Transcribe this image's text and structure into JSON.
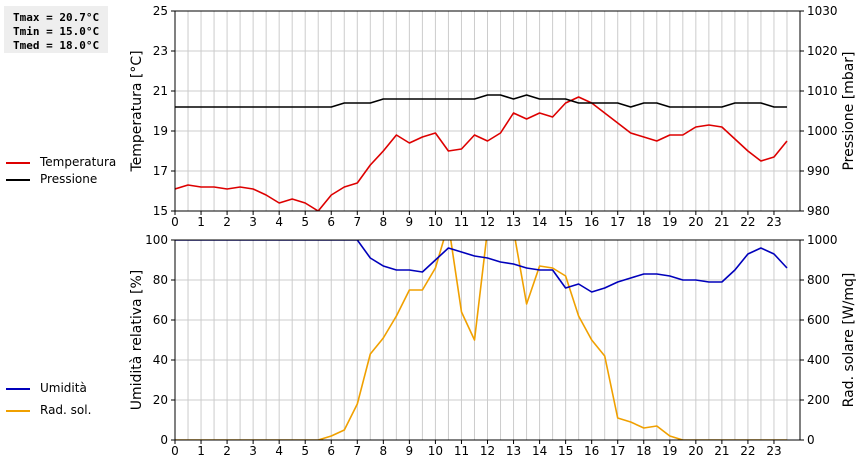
{
  "stats": {
    "tmax": "Tmax = 20.7°C",
    "tmin": "Tmin = 15.0°C",
    "tmed": "Tmed = 18.0°C"
  },
  "colors": {
    "temperature": "#dd0000",
    "pressure": "#000000",
    "humidity": "#0000bb",
    "solar": "#f0a000",
    "grid": "#cccccc"
  },
  "chart_data": [
    {
      "type": "line",
      "xlabel": "",
      "ylabel_left": "Temperatura [°C]",
      "ylabel_right": "Pressione [mbar]",
      "xlim": [
        0,
        24
      ],
      "ylim_left": [
        15,
        25
      ],
      "ylim_right": [
        980,
        1030
      ],
      "xticks": [
        "0",
        "1",
        "2",
        "3",
        "4",
        "5",
        "6",
        "7",
        "8",
        "9",
        "10",
        "11",
        "12",
        "13",
        "14",
        "15",
        "16",
        "17",
        "18",
        "19",
        "20",
        "21",
        "22",
        "23"
      ],
      "yticks_left": [
        "15",
        "17",
        "19",
        "21",
        "23",
        "25"
      ],
      "yticks_right": [
        "980",
        "990",
        "1000",
        "1010",
        "1020",
        "1030"
      ],
      "grid": true,
      "legend_position": "left",
      "series": [
        {
          "name": "Temperatura",
          "axis": "left",
          "color": "#dd0000",
          "x": [
            0,
            0.5,
            1,
            1.5,
            2,
            2.5,
            3,
            3.5,
            4,
            4.5,
            5,
            5.5,
            6,
            6.5,
            7,
            7.5,
            8,
            8.5,
            9,
            9.5,
            10,
            10.5,
            11,
            11.5,
            12,
            12.5,
            13,
            13.5,
            14,
            14.5,
            15,
            15.5,
            16,
            16.5,
            17,
            17.5,
            18,
            18.5,
            19,
            19.5,
            20,
            20.5,
            21,
            21.5,
            22,
            22.5,
            23,
            23.5
          ],
          "values": [
            16.1,
            16.3,
            16.2,
            16.2,
            16.1,
            16.2,
            16.1,
            15.8,
            15.4,
            15.6,
            15.4,
            15.0,
            15.8,
            16.2,
            16.4,
            17.3,
            18.0,
            18.8,
            18.4,
            18.7,
            18.9,
            18.0,
            18.1,
            18.8,
            18.5,
            18.9,
            19.9,
            19.6,
            19.9,
            19.7,
            20.4,
            20.7,
            20.4,
            19.9,
            19.4,
            18.9,
            18.7,
            18.5,
            18.8,
            18.8,
            19.2,
            19.3,
            19.2,
            18.6,
            18.0,
            17.5,
            17.7,
            18.5
          ]
        },
        {
          "name": "Pressione",
          "axis": "right",
          "color": "#000000",
          "x": [
            0,
            0.5,
            1,
            1.5,
            2,
            2.5,
            3,
            3.5,
            4,
            4.5,
            5,
            5.5,
            6,
            6.5,
            7,
            7.5,
            8,
            8.5,
            9,
            9.5,
            10,
            10.5,
            11,
            11.5,
            12,
            12.5,
            13,
            13.5,
            14,
            14.5,
            15,
            15.5,
            16,
            16.5,
            17,
            17.5,
            18,
            18.5,
            19,
            19.5,
            20,
            20.5,
            21,
            21.5,
            22,
            22.5,
            23,
            23.5
          ],
          "values": [
            1006,
            1006,
            1006,
            1006,
            1006,
            1006,
            1006,
            1006,
            1006,
            1006,
            1006,
            1006,
            1006,
            1007,
            1007,
            1007,
            1008,
            1008,
            1008,
            1008,
            1008,
            1008,
            1008,
            1008,
            1009,
            1009,
            1008,
            1009,
            1008,
            1008,
            1008,
            1007,
            1007,
            1007,
            1007,
            1006,
            1007,
            1007,
            1006,
            1006,
            1006,
            1006,
            1006,
            1007,
            1007,
            1007,
            1006,
            1006
          ]
        }
      ]
    },
    {
      "type": "line",
      "xlabel": "",
      "ylabel_left": "Umidità relativa [%]",
      "ylabel_right": "Rad. solare [W/mq]",
      "xlim": [
        0,
        24
      ],
      "ylim_left": [
        0,
        100
      ],
      "ylim_right": [
        0,
        1000
      ],
      "xticks": [
        "0",
        "1",
        "2",
        "3",
        "4",
        "5",
        "6",
        "7",
        "8",
        "9",
        "10",
        "11",
        "12",
        "13",
        "14",
        "15",
        "16",
        "17",
        "18",
        "19",
        "20",
        "21",
        "22",
        "23"
      ],
      "yticks_left": [
        "0",
        "20",
        "40",
        "60",
        "80",
        "100"
      ],
      "yticks_right": [
        "0",
        "200",
        "400",
        "600",
        "800",
        "1000"
      ],
      "grid": true,
      "legend_position": "left",
      "series": [
        {
          "name": "Umidità",
          "axis": "left",
          "color": "#0000bb",
          "x": [
            0,
            0.5,
            1,
            1.5,
            2,
            2.5,
            3,
            3.5,
            4,
            4.5,
            5,
            5.5,
            6,
            6.5,
            7,
            7.5,
            8,
            8.5,
            9,
            9.5,
            10,
            10.5,
            11,
            11.5,
            12,
            12.5,
            13,
            13.5,
            14,
            14.5,
            15,
            15.5,
            16,
            16.5,
            17,
            17.5,
            18,
            18.5,
            19,
            19.5,
            20,
            20.5,
            21,
            21.5,
            22,
            22.5,
            23,
            23.5
          ],
          "values": [
            100,
            100,
            100,
            100,
            100,
            100,
            100,
            100,
            100,
            100,
            100,
            100,
            100,
            100,
            100,
            91,
            87,
            85,
            85,
            84,
            90,
            96,
            94,
            92,
            91,
            89,
            88,
            86,
            85,
            85,
            76,
            78,
            74,
            76,
            79,
            81,
            83,
            83,
            82,
            80,
            80,
            79,
            79,
            85,
            93,
            96,
            93,
            86
          ]
        },
        {
          "name": "Rad. sol.",
          "axis": "right",
          "color": "#f0a000",
          "x": [
            0,
            0.5,
            1,
            1.5,
            2,
            2.5,
            3,
            3.5,
            4,
            4.5,
            5,
            5.5,
            6,
            6.5,
            7,
            7.5,
            8,
            8.5,
            9,
            9.5,
            10,
            10.5,
            11,
            11.5,
            12,
            12.5,
            13,
            13.5,
            14,
            14.5,
            15,
            15.5,
            16,
            16.5,
            17,
            17.5,
            18,
            18.5,
            19,
            19.5,
            20,
            20.5,
            21,
            21.5,
            22,
            22.5,
            23,
            23.5
          ],
          "values": [
            0,
            0,
            0,
            0,
            0,
            0,
            0,
            0,
            0,
            0,
            0,
            0,
            20,
            50,
            180,
            430,
            510,
            620,
            750,
            750,
            860,
            1080,
            640,
            500,
            1050,
            1120,
            1050,
            680,
            870,
            860,
            820,
            620,
            500,
            420,
            110,
            90,
            60,
            70,
            20,
            0,
            0,
            0,
            0,
            0,
            0,
            0,
            0,
            0
          ]
        }
      ]
    }
  ]
}
